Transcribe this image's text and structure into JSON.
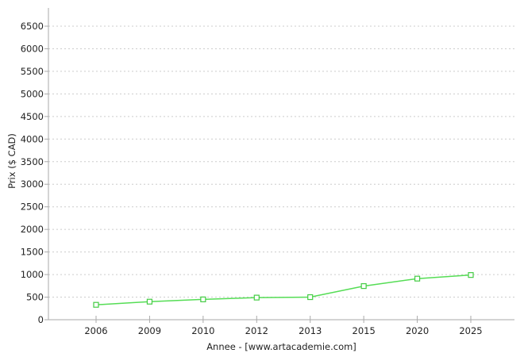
{
  "chart_data": {
    "type": "line",
    "title": "",
    "categories": [
      "2006",
      "2009",
      "2010",
      "2012",
      "2013",
      "2015",
      "2020",
      "2025"
    ],
    "series": [
      {
        "name": "Prix",
        "values": [
          330,
          400,
          450,
          490,
          500,
          745,
          910,
          990
        ]
      }
    ],
    "xlabel": "Annee - [www.artacademie.com]",
    "ylabel": "Prix ($ CAD)",
    "ylim": [
      0,
      6500
    ],
    "ytick_step": 500,
    "grid": "horizontal dotted",
    "legend_position": "none",
    "marker": "square-open",
    "colors": {
      "line": "#55dd55",
      "marker_border": "#44cc44",
      "marker_fill": "#ffffff",
      "grid": "#cccccc",
      "axis": "#aaaaaa",
      "text": "#222222",
      "background": "#ffffff"
    }
  }
}
